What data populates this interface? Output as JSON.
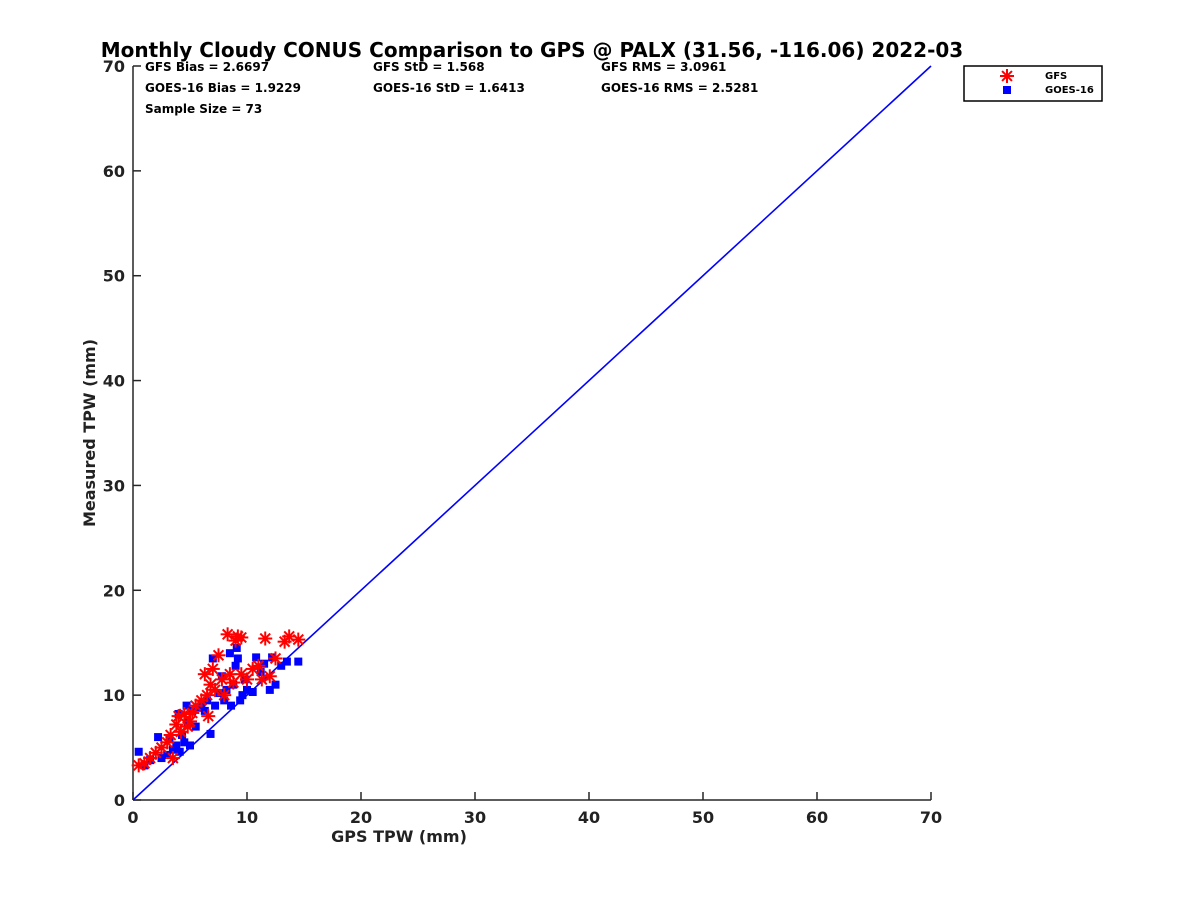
{
  "chart_data": {
    "type": "scatter",
    "title": "Monthly Cloudy CONUS Comparison to GPS @ PALX (31.56, -116.06) 2022-03",
    "xlabel": "GPS TPW (mm)",
    "ylabel": "Measured TPW (mm)",
    "xlim": [
      0,
      70
    ],
    "ylim": [
      0,
      70
    ],
    "xticks": [
      "0",
      "10",
      "20",
      "30",
      "40",
      "50",
      "60",
      "70"
    ],
    "yticks": [
      "0",
      "10",
      "20",
      "30",
      "40",
      "50",
      "60",
      "70"
    ],
    "grid": false,
    "legend_position": "top-right",
    "stats": [
      [
        "GFS Bias = 2.6697",
        "GFS StD = 1.568",
        "GFS RMS = 3.0961"
      ],
      [
        "GOES-16 Bias = 1.9229",
        "GOES-16 StD = 1.6413",
        "GOES-16 RMS = 2.5281"
      ],
      [
        "Sample Size = 73"
      ]
    ],
    "reference_line": {
      "x": [
        0,
        70
      ],
      "y": [
        0,
        70
      ],
      "color": "#0000ff"
    },
    "series": [
      {
        "name": "GFS",
        "marker": "asterisk",
        "color": "#ff0000",
        "points": [
          [
            0.5,
            3.3
          ],
          [
            1.0,
            3.5
          ],
          [
            1.5,
            4.0
          ],
          [
            2.0,
            4.5
          ],
          [
            2.5,
            5.0
          ],
          [
            3.0,
            5.5
          ],
          [
            3.3,
            6.2
          ],
          [
            3.5,
            4.0
          ],
          [
            3.8,
            7.2
          ],
          [
            4.0,
            8.0
          ],
          [
            4.2,
            6.5
          ],
          [
            4.5,
            8.2
          ],
          [
            4.8,
            7.0
          ],
          [
            5.0,
            7.5
          ],
          [
            5.2,
            8.3
          ],
          [
            5.5,
            9.0
          ],
          [
            6.0,
            9.5
          ],
          [
            6.3,
            12.0
          ],
          [
            6.5,
            10.0
          ],
          [
            6.6,
            8.0
          ],
          [
            6.8,
            11.0
          ],
          [
            7.0,
            12.5
          ],
          [
            7.2,
            10.5
          ],
          [
            7.5,
            13.8
          ],
          [
            7.8,
            11.5
          ],
          [
            8.0,
            10.0
          ],
          [
            8.3,
            15.8
          ],
          [
            8.5,
            12.0
          ],
          [
            8.8,
            11.2
          ],
          [
            9.0,
            15.2
          ],
          [
            9.2,
            15.6
          ],
          [
            9.5,
            15.5
          ],
          [
            9.5,
            12.0
          ],
          [
            10.0,
            11.5
          ],
          [
            10.5,
            12.5
          ],
          [
            11.0,
            12.8
          ],
          [
            11.3,
            11.5
          ],
          [
            11.6,
            15.4
          ],
          [
            12.0,
            11.8
          ],
          [
            12.5,
            13.5
          ],
          [
            13.3,
            15.1
          ],
          [
            13.7,
            15.6
          ],
          [
            14.5,
            15.3
          ]
        ]
      },
      {
        "name": "GOES-16",
        "marker": "square",
        "color": "#0000ff",
        "points": [
          [
            0.5,
            4.6
          ],
          [
            1.0,
            3.3
          ],
          [
            1.5,
            3.8
          ],
          [
            2.2,
            6.0
          ],
          [
            2.5,
            4.0
          ],
          [
            3.0,
            4.3
          ],
          [
            3.2,
            5.8
          ],
          [
            3.5,
            4.8
          ],
          [
            3.8,
            5.2
          ],
          [
            4.0,
            8.2
          ],
          [
            4.1,
            4.6
          ],
          [
            4.3,
            6.2
          ],
          [
            4.5,
            5.5
          ],
          [
            4.7,
            9.0
          ],
          [
            4.8,
            7.4
          ],
          [
            5.0,
            5.2
          ],
          [
            5.2,
            8.5
          ],
          [
            5.5,
            7.0
          ],
          [
            5.8,
            8.8
          ],
          [
            6.0,
            9.2
          ],
          [
            6.3,
            8.5
          ],
          [
            6.5,
            9.5
          ],
          [
            6.8,
            6.3
          ],
          [
            7.0,
            13.5
          ],
          [
            7.2,
            9.0
          ],
          [
            7.5,
            10.2
          ],
          [
            7.8,
            11.8
          ],
          [
            8.0,
            9.5
          ],
          [
            8.2,
            10.5
          ],
          [
            8.5,
            14.0
          ],
          [
            8.6,
            9.0
          ],
          [
            8.8,
            11.0
          ],
          [
            9.0,
            12.8
          ],
          [
            9.1,
            14.5
          ],
          [
            9.2,
            13.5
          ],
          [
            9.4,
            9.5
          ],
          [
            9.6,
            10.0
          ],
          [
            9.8,
            11.5
          ],
          [
            10.0,
            10.5
          ],
          [
            10.5,
            10.3
          ],
          [
            10.8,
            13.6
          ],
          [
            11.2,
            12.2
          ],
          [
            11.5,
            13.0
          ],
          [
            12.0,
            10.5
          ],
          [
            12.2,
            13.6
          ],
          [
            12.5,
            11.0
          ],
          [
            13.0,
            12.8
          ],
          [
            13.5,
            13.2
          ],
          [
            14.5,
            13.2
          ]
        ]
      }
    ]
  }
}
